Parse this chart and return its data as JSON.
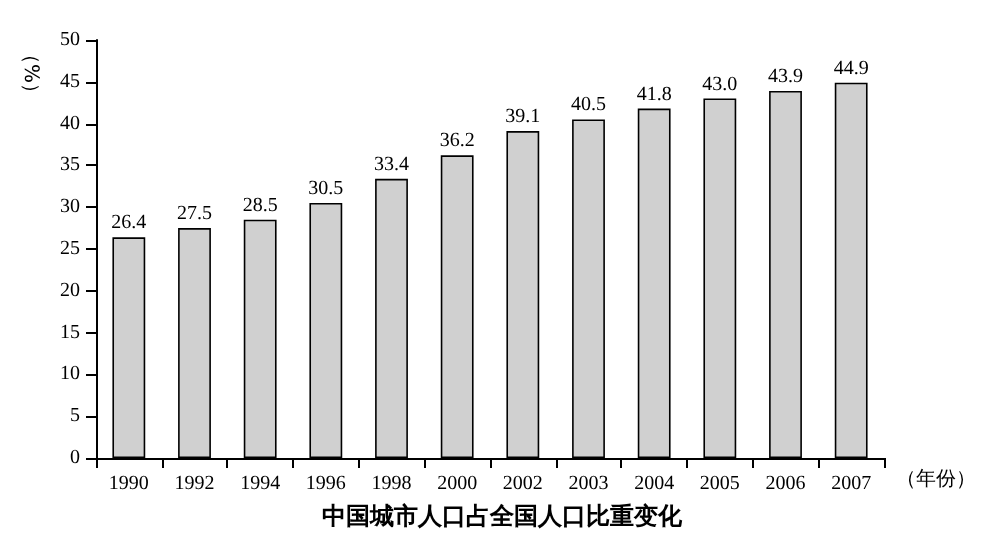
{
  "chart_data": {
    "type": "bar",
    "title": "中国城市人口占全国人口比重变化",
    "xlabel": "（年份）",
    "ylabel": "（%）",
    "categories": [
      "1990",
      "1992",
      "1994",
      "1996",
      "1998",
      "2000",
      "2002",
      "2003",
      "2004",
      "2005",
      "2006",
      "2007"
    ],
    "values": [
      26.4,
      27.5,
      28.5,
      30.5,
      33.4,
      36.2,
      39.1,
      40.5,
      41.8,
      43.0,
      43.9,
      44.9
    ],
    "value_labels": [
      "26.4",
      "27.5",
      "28.5",
      "30.5",
      "33.4",
      "36.2",
      "39.1",
      "40.5",
      "41.8",
      "43.0",
      "43.9",
      "44.9"
    ],
    "color": "#d0d0d0",
    "ylim": [
      0,
      50
    ],
    "yticks": [
      0,
      5,
      10,
      15,
      20,
      25,
      30,
      35,
      40,
      45,
      50
    ],
    "grid": false
  }
}
